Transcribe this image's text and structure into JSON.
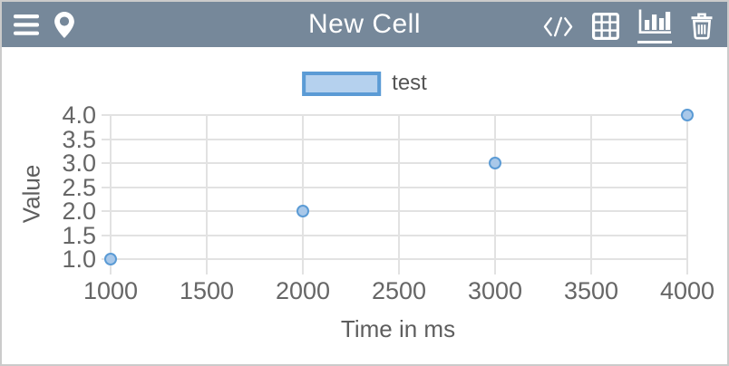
{
  "colors": {
    "window_border": "#cbcbcb",
    "header_bg": "#76889a",
    "icon": "#ffffff",
    "grid": "#e2e2e2",
    "tick": "#666666",
    "axis": "#5e5e5e",
    "marker_fill": "#a9c8e9",
    "marker_border": "#5b9bd5",
    "legend_swatch_fill": "#b5d1ee",
    "legend_swatch_border": "#5b9bd5"
  },
  "header": {
    "title": "New Cell",
    "left_icons": [
      "menu-icon",
      "location-pin-icon"
    ],
    "right_icons": [
      "code-icon",
      "table-icon",
      "bar-chart-icon",
      "trash-icon"
    ],
    "active_icon": "bar-chart-icon"
  },
  "legend": {
    "label": "test"
  },
  "chart_data": {
    "type": "scatter",
    "title": "",
    "xlabel": "Time in ms",
    "ylabel": "Value",
    "series": [
      {
        "name": "test",
        "x": [
          1000,
          2000,
          3000,
          4000
        ],
        "y": [
          1,
          2,
          3,
          4
        ]
      }
    ],
    "xticks": [
      1000,
      1500,
      2000,
      2500,
      3000,
      3500,
      4000
    ],
    "yticks": [
      4.0,
      3.5,
      3.0,
      2.5,
      2.0,
      1.5,
      1.0
    ],
    "xlim": [
      1000,
      4000
    ],
    "ylim": [
      1,
      4
    ],
    "grid": true,
    "legend_position": "top-center"
  }
}
